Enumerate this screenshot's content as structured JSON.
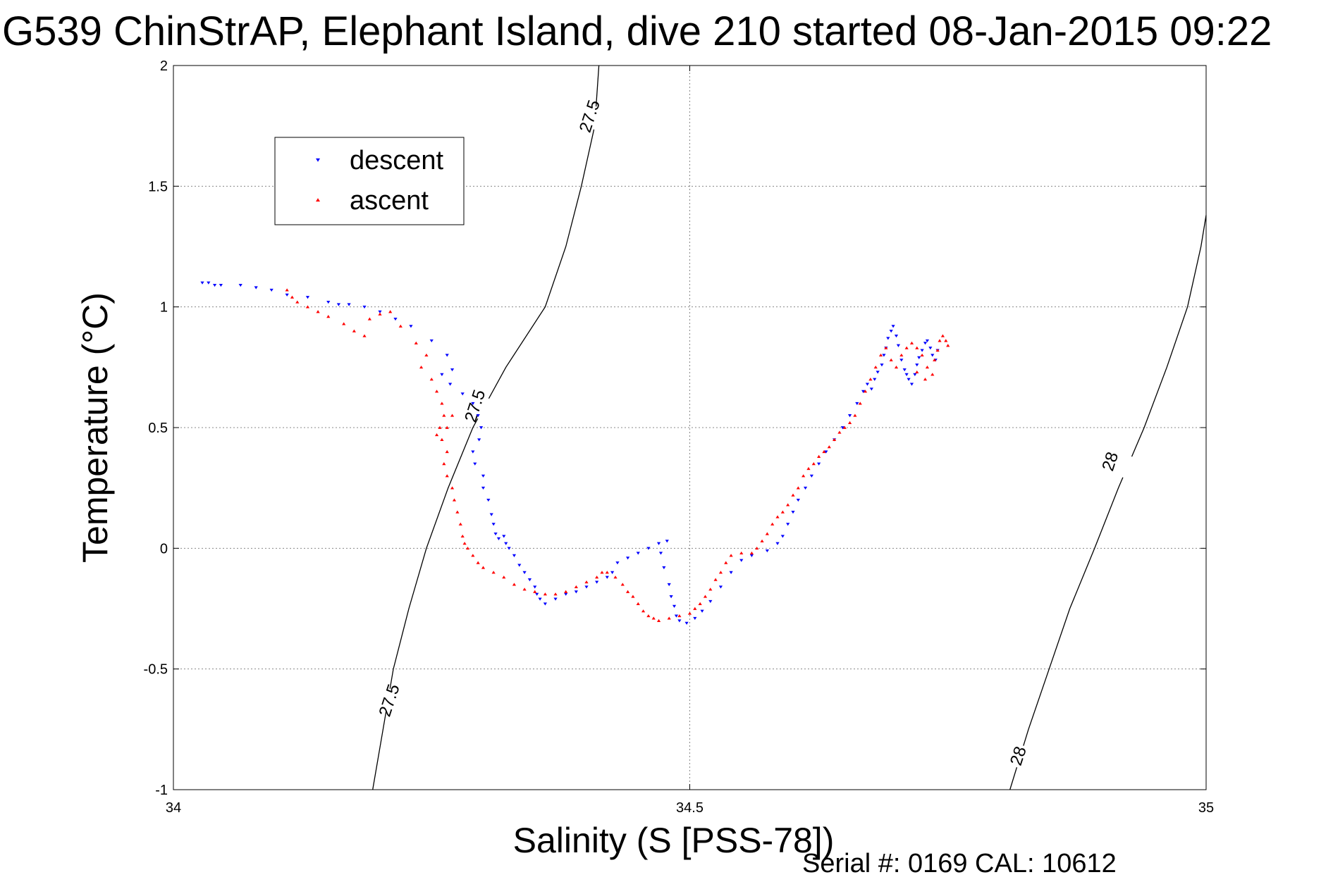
{
  "chart_data": {
    "type": "scatter",
    "title": "G539 ChinStrAP, Elephant Island, dive 210 started 08-Jan-2015 09:22",
    "xlabel": "Salinity (S [PSS-78])",
    "ylabel": "Temperature (°C)",
    "xlim": [
      34,
      35
    ],
    "ylim": [
      -1,
      2
    ],
    "xticks": [
      34,
      34.5,
      35
    ],
    "xtick_labels": [
      "34",
      "34.5",
      "35"
    ],
    "yticks": [
      -1,
      -0.5,
      0,
      0.5,
      1,
      1.5,
      2
    ],
    "ytick_labels": [
      "-1",
      "-0.5",
      "0",
      "0.5",
      "1",
      "1.5",
      "2"
    ],
    "grid": true,
    "legend": {
      "position": "top-left",
      "entries": [
        {
          "label": "descent",
          "color": "#0000ff",
          "marker": "triangle-down"
        },
        {
          "label": "ascent",
          "color": "#ff0000",
          "marker": "triangle-up"
        }
      ]
    },
    "footer": "Serial #: 0169 CAL: 10612",
    "contours": [
      {
        "level": "27.5",
        "points": [
          [
            34.193,
            -1.0
          ],
          [
            34.203,
            -0.75
          ],
          [
            34.213,
            -0.5
          ],
          [
            34.228,
            -0.25
          ],
          [
            34.245,
            0.0
          ],
          [
            34.266,
            0.25
          ],
          [
            34.29,
            0.5
          ],
          [
            34.322,
            0.75
          ],
          [
            34.36,
            1.0
          ],
          [
            34.38,
            1.25
          ],
          [
            34.395,
            1.5
          ],
          [
            34.408,
            1.75
          ],
          [
            34.412,
            2.0
          ]
        ],
        "labels": [
          {
            "text": "27.5",
            "x": 34.209,
            "y": -0.63
          },
          {
            "text": "27.5",
            "x": 34.292,
            "y": 0.59
          },
          {
            "text": "27.5",
            "x": 34.403,
            "y": 1.79
          }
        ]
      },
      {
        "level": "28",
        "points": [
          [
            34.81,
            -1.0
          ],
          [
            34.828,
            -0.75
          ],
          [
            34.848,
            -0.5
          ],
          [
            34.868,
            -0.25
          ],
          [
            34.892,
            0.0
          ],
          [
            34.915,
            0.25
          ],
          [
            34.94,
            0.5
          ],
          [
            34.962,
            0.75
          ],
          [
            34.982,
            1.0
          ],
          [
            34.995,
            1.25
          ],
          [
            35.0,
            1.38
          ]
        ],
        "labels": [
          {
            "text": "28",
            "x": 34.818,
            "y": -0.86
          },
          {
            "text": "28",
            "x": 34.907,
            "y": 0.36
          }
        ]
      }
    ],
    "series": [
      {
        "name": "descent",
        "color": "#0000ff",
        "marker": "triangle-down",
        "points": [
          [
            34.028,
            1.1
          ],
          [
            34.034,
            1.1
          ],
          [
            34.04,
            1.09
          ],
          [
            34.046,
            1.09
          ],
          [
            34.065,
            1.09
          ],
          [
            34.08,
            1.08
          ],
          [
            34.095,
            1.07
          ],
          [
            34.11,
            1.05
          ],
          [
            34.13,
            1.04
          ],
          [
            34.15,
            1.02
          ],
          [
            34.16,
            1.01
          ],
          [
            34.17,
            1.01
          ],
          [
            34.185,
            1.0
          ],
          [
            34.2,
            0.98
          ],
          [
            34.215,
            0.95
          ],
          [
            34.23,
            0.92
          ],
          [
            34.25,
            0.86
          ],
          [
            34.265,
            0.8
          ],
          [
            34.27,
            0.74
          ],
          [
            34.26,
            0.72
          ],
          [
            34.268,
            0.68
          ],
          [
            34.28,
            0.64
          ],
          [
            34.29,
            0.6
          ],
          [
            34.295,
            0.55
          ],
          [
            34.298,
            0.5
          ],
          [
            34.296,
            0.45
          ],
          [
            34.29,
            0.4
          ],
          [
            34.292,
            0.35
          ],
          [
            34.3,
            0.3
          ],
          [
            34.3,
            0.25
          ],
          [
            34.305,
            0.2
          ],
          [
            34.308,
            0.14
          ],
          [
            34.31,
            0.1
          ],
          [
            34.312,
            0.06
          ],
          [
            34.315,
            0.04
          ],
          [
            34.32,
            0.05
          ],
          [
            34.322,
            0.02
          ],
          [
            34.325,
            0.0
          ],
          [
            34.33,
            -0.03
          ],
          [
            34.335,
            -0.07
          ],
          [
            34.34,
            -0.1
          ],
          [
            34.345,
            -0.13
          ],
          [
            34.35,
            -0.16
          ],
          [
            34.352,
            -0.19
          ],
          [
            34.355,
            -0.21
          ],
          [
            34.36,
            -0.23
          ],
          [
            34.37,
            -0.21
          ],
          [
            34.38,
            -0.19
          ],
          [
            34.39,
            -0.18
          ],
          [
            34.4,
            -0.16
          ],
          [
            34.41,
            -0.14
          ],
          [
            34.42,
            -0.12
          ],
          [
            34.425,
            -0.1
          ],
          [
            34.43,
            -0.06
          ],
          [
            34.44,
            -0.04
          ],
          [
            34.45,
            -0.02
          ],
          [
            34.46,
            0.0
          ],
          [
            34.47,
            0.02
          ],
          [
            34.478,
            0.03
          ],
          [
            34.472,
            -0.02
          ],
          [
            34.475,
            -0.08
          ],
          [
            34.48,
            -0.15
          ],
          [
            34.482,
            -0.2
          ],
          [
            34.485,
            -0.24
          ],
          [
            34.487,
            -0.28
          ],
          [
            34.49,
            -0.3
          ],
          [
            34.497,
            -0.31
          ],
          [
            34.505,
            -0.29
          ],
          [
            34.512,
            -0.26
          ],
          [
            34.52,
            -0.22
          ],
          [
            34.53,
            -0.16
          ],
          [
            34.54,
            -0.1
          ],
          [
            34.55,
            -0.05
          ],
          [
            34.56,
            -0.03
          ],
          [
            34.575,
            -0.01
          ],
          [
            34.585,
            0.02
          ],
          [
            34.59,
            0.05
          ],
          [
            34.595,
            0.1
          ],
          [
            34.6,
            0.15
          ],
          [
            34.605,
            0.2
          ],
          [
            34.612,
            0.25
          ],
          [
            34.618,
            0.3
          ],
          [
            34.625,
            0.35
          ],
          [
            34.632,
            0.4
          ],
          [
            34.64,
            0.45
          ],
          [
            34.648,
            0.5
          ],
          [
            34.655,
            0.55
          ],
          [
            34.662,
            0.6
          ],
          [
            34.668,
            0.65
          ],
          [
            34.672,
            0.68
          ],
          [
            34.676,
            0.66
          ],
          [
            34.679,
            0.7
          ],
          [
            34.682,
            0.73
          ],
          [
            34.686,
            0.76
          ],
          [
            34.688,
            0.8
          ],
          [
            34.69,
            0.83
          ],
          [
            34.692,
            0.87
          ],
          [
            34.695,
            0.9
          ],
          [
            34.697,
            0.92
          ],
          [
            34.7,
            0.88
          ],
          [
            34.702,
            0.84
          ],
          [
            34.705,
            0.78
          ],
          [
            34.708,
            0.74
          ],
          [
            34.71,
            0.72
          ],
          [
            34.712,
            0.7
          ],
          [
            34.715,
            0.68
          ],
          [
            34.718,
            0.72
          ],
          [
            34.72,
            0.76
          ],
          [
            34.722,
            0.79
          ],
          [
            34.725,
            0.82
          ],
          [
            34.728,
            0.85
          ],
          [
            34.73,
            0.86
          ],
          [
            34.733,
            0.83
          ],
          [
            34.735,
            0.8
          ],
          [
            34.738,
            0.78
          ],
          [
            34.74,
            0.82
          ]
        ]
      },
      {
        "name": "ascent",
        "color": "#ff0000",
        "marker": "triangle-up",
        "points": [
          [
            34.11,
            1.07
          ],
          [
            34.115,
            1.04
          ],
          [
            34.12,
            1.02
          ],
          [
            34.13,
            1.0
          ],
          [
            34.14,
            0.98
          ],
          [
            34.15,
            0.96
          ],
          [
            34.165,
            0.93
          ],
          [
            34.175,
            0.9
          ],
          [
            34.185,
            0.88
          ],
          [
            34.19,
            0.95
          ],
          [
            34.2,
            0.97
          ],
          [
            34.21,
            0.98
          ],
          [
            34.22,
            0.92
          ],
          [
            34.235,
            0.85
          ],
          [
            34.245,
            0.8
          ],
          [
            34.24,
            0.75
          ],
          [
            34.25,
            0.7
          ],
          [
            34.255,
            0.65
          ],
          [
            34.26,
            0.6
          ],
          [
            34.262,
            0.55
          ],
          [
            34.258,
            0.5
          ],
          [
            34.255,
            0.47
          ],
          [
            34.26,
            0.45
          ],
          [
            34.265,
            0.5
          ],
          [
            34.27,
            0.55
          ],
          [
            34.265,
            0.4
          ],
          [
            34.262,
            0.35
          ],
          [
            34.265,
            0.3
          ],
          [
            34.27,
            0.25
          ],
          [
            34.272,
            0.2
          ],
          [
            34.275,
            0.15
          ],
          [
            34.278,
            0.1
          ],
          [
            34.28,
            0.05
          ],
          [
            34.282,
            0.02
          ],
          [
            34.285,
            0.0
          ],
          [
            34.29,
            -0.03
          ],
          [
            34.295,
            -0.06
          ],
          [
            34.3,
            -0.08
          ],
          [
            34.31,
            -0.1
          ],
          [
            34.32,
            -0.12
          ],
          [
            34.33,
            -0.15
          ],
          [
            34.34,
            -0.17
          ],
          [
            34.35,
            -0.18
          ],
          [
            34.36,
            -0.19
          ],
          [
            34.37,
            -0.19
          ],
          [
            34.38,
            -0.18
          ],
          [
            34.39,
            -0.16
          ],
          [
            34.4,
            -0.14
          ],
          [
            34.41,
            -0.12
          ],
          [
            34.415,
            -0.1
          ],
          [
            34.42,
            -0.1
          ],
          [
            34.428,
            -0.12
          ],
          [
            34.435,
            -0.15
          ],
          [
            34.44,
            -0.18
          ],
          [
            34.445,
            -0.2
          ],
          [
            34.45,
            -0.23
          ],
          [
            34.455,
            -0.26
          ],
          [
            34.46,
            -0.28
          ],
          [
            34.465,
            -0.29
          ],
          [
            34.47,
            -0.3
          ],
          [
            34.48,
            -0.29
          ],
          [
            34.49,
            -0.28
          ],
          [
            34.5,
            -0.27
          ],
          [
            34.505,
            -0.25
          ],
          [
            34.51,
            -0.23
          ],
          [
            34.515,
            -0.2
          ],
          [
            34.52,
            -0.17
          ],
          [
            34.525,
            -0.13
          ],
          [
            34.53,
            -0.1
          ],
          [
            34.535,
            -0.06
          ],
          [
            34.54,
            -0.03
          ],
          [
            34.55,
            -0.02
          ],
          [
            34.56,
            -0.02
          ],
          [
            34.565,
            0.0
          ],
          [
            34.57,
            0.03
          ],
          [
            34.575,
            0.06
          ],
          [
            34.58,
            0.1
          ],
          [
            34.585,
            0.13
          ],
          [
            34.59,
            0.15
          ],
          [
            34.595,
            0.18
          ],
          [
            34.6,
            0.22
          ],
          [
            34.605,
            0.25
          ],
          [
            34.61,
            0.3
          ],
          [
            34.615,
            0.33
          ],
          [
            34.62,
            0.35
          ],
          [
            34.625,
            0.38
          ],
          [
            34.63,
            0.4
          ],
          [
            34.635,
            0.42
          ],
          [
            34.64,
            0.45
          ],
          [
            34.645,
            0.48
          ],
          [
            34.65,
            0.5
          ],
          [
            34.655,
            0.52
          ],
          [
            34.66,
            0.55
          ],
          [
            34.665,
            0.6
          ],
          [
            34.67,
            0.65
          ],
          [
            34.675,
            0.7
          ],
          [
            34.68,
            0.75
          ],
          [
            34.685,
            0.8
          ],
          [
            34.69,
            0.83
          ],
          [
            34.695,
            0.78
          ],
          [
            34.7,
            0.75
          ],
          [
            34.705,
            0.8
          ],
          [
            34.71,
            0.83
          ],
          [
            34.715,
            0.85
          ],
          [
            34.72,
            0.83
          ],
          [
            34.725,
            0.8
          ],
          [
            34.73,
            0.75
          ],
          [
            34.735,
            0.72
          ],
          [
            34.737,
            0.78
          ],
          [
            34.74,
            0.82
          ],
          [
            34.742,
            0.86
          ],
          [
            34.745,
            0.88
          ],
          [
            34.748,
            0.86
          ],
          [
            34.75,
            0.84
          ],
          [
            34.72,
            0.73
          ],
          [
            34.728,
            0.7
          ]
        ]
      }
    ]
  }
}
